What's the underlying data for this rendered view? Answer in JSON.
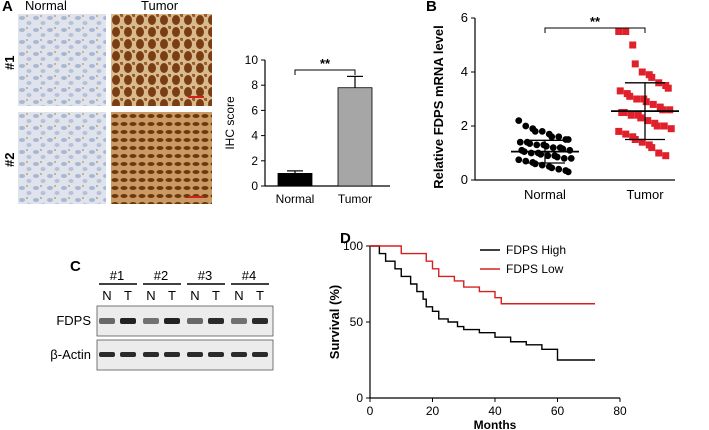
{
  "panels": {
    "A": {
      "letter": "A",
      "col_labels": [
        "Normal",
        "Tumor"
      ],
      "row_labels": [
        "#1",
        "#2"
      ]
    },
    "B": {
      "letter": "B"
    },
    "C": {
      "letter": "C",
      "lane_groups": [
        "#1",
        "#2",
        "#3",
        "#4"
      ],
      "lane_letters": [
        "N",
        "T",
        "N",
        "T",
        "N",
        "T",
        "N",
        "T"
      ],
      "blots": [
        "FDPS",
        "β-Actin"
      ],
      "band_intensity": {
        "FDPS": [
          0.55,
          0.95,
          0.5,
          0.95,
          0.55,
          0.9,
          0.5,
          0.9
        ],
        "β-Actin": [
          0.9,
          0.9,
          0.9,
          0.9,
          0.9,
          0.9,
          0.9,
          0.9
        ]
      }
    },
    "D": {
      "letter": "D"
    }
  },
  "chart_data": [
    {
      "id": "A-ihc",
      "type": "bar",
      "categories": [
        "Normal",
        "Tumor"
      ],
      "values": [
        1.0,
        7.8
      ],
      "errors": [
        0.2,
        0.9
      ],
      "colors": [
        "#000000",
        "#a6a6a6"
      ],
      "ylabel": "IHC score",
      "ylim": [
        0,
        10
      ],
      "yticks": [
        0,
        2,
        4,
        6,
        8,
        10
      ],
      "significance": "**"
    },
    {
      "id": "B-mrna",
      "type": "scatter",
      "categories": [
        "Normal",
        "Tumor"
      ],
      "ylabel": "Relative FDPS mRNA level",
      "ylim": [
        0,
        6
      ],
      "yticks": [
        0,
        2,
        4,
        6
      ],
      "significance": "**",
      "series": [
        {
          "name": "Normal",
          "color": "#000000",
          "marker": "circle",
          "mean": 1.05,
          "sd": 0.42,
          "values": [
            2.2,
            2.0,
            1.9,
            1.8,
            1.8,
            1.7,
            1.6,
            1.6,
            1.5,
            1.5,
            1.4,
            1.4,
            1.35,
            1.3,
            1.3,
            1.25,
            1.2,
            1.2,
            1.15,
            1.1,
            1.1,
            1.05,
            1.0,
            1.0,
            0.95,
            0.9,
            0.9,
            0.85,
            0.8,
            0.8,
            0.75,
            0.7,
            0.65,
            0.6,
            0.55,
            0.5,
            0.45,
            0.4,
            0.35,
            0.3
          ]
        },
        {
          "name": "Tumor",
          "color": "#e0202a",
          "marker": "square",
          "mean": 2.55,
          "sd": 1.05,
          "values": [
            5.5,
            5.5,
            5.0,
            4.3,
            4.0,
            3.9,
            3.8,
            3.6,
            3.5,
            3.4,
            3.3,
            3.2,
            3.1,
            3.0,
            3.0,
            2.9,
            2.8,
            2.7,
            2.6,
            2.6,
            2.5,
            2.5,
            2.4,
            2.4,
            2.3,
            2.2,
            2.1,
            2.0,
            2.0,
            1.9,
            1.8,
            1.7,
            1.6,
            1.5,
            1.4,
            1.3,
            1.2,
            1.0,
            0.9
          ]
        }
      ]
    },
    {
      "id": "D-survival",
      "type": "line",
      "xlabel": "Months",
      "ylabel": "Survival (%)",
      "xlim": [
        0,
        80
      ],
      "ylim": [
        0,
        100
      ],
      "xticks": [
        0,
        20,
        40,
        60,
        80
      ],
      "yticks": [
        0,
        50,
        100
      ],
      "legend_position": "top-right",
      "series": [
        {
          "name": "FDPS High",
          "color": "#000000",
          "steps": [
            [
              0,
              100
            ],
            [
              3,
              95
            ],
            [
              5,
              90
            ],
            [
              8,
              85
            ],
            [
              10,
              80
            ],
            [
              13,
              75
            ],
            [
              15,
              70
            ],
            [
              17,
              65
            ],
            [
              18,
              60
            ],
            [
              20,
              57
            ],
            [
              22,
              52
            ],
            [
              25,
              50
            ],
            [
              28,
              47
            ],
            [
              30,
              45
            ],
            [
              35,
              43
            ],
            [
              40,
              40
            ],
            [
              45,
              37
            ],
            [
              50,
              35
            ],
            [
              55,
              32
            ],
            [
              60,
              30
            ],
            [
              60,
              25
            ],
            [
              72,
              25
            ]
          ]
        },
        {
          "name": "FDPS Low",
          "color": "#d62020",
          "steps": [
            [
              0,
              100
            ],
            [
              10,
              95
            ],
            [
              18,
              90
            ],
            [
              20,
              85
            ],
            [
              22,
              80
            ],
            [
              27,
              77
            ],
            [
              30,
              73
            ],
            [
              35,
              70
            ],
            [
              40,
              66
            ],
            [
              42,
              62
            ],
            [
              72,
              62
            ]
          ]
        }
      ]
    }
  ]
}
